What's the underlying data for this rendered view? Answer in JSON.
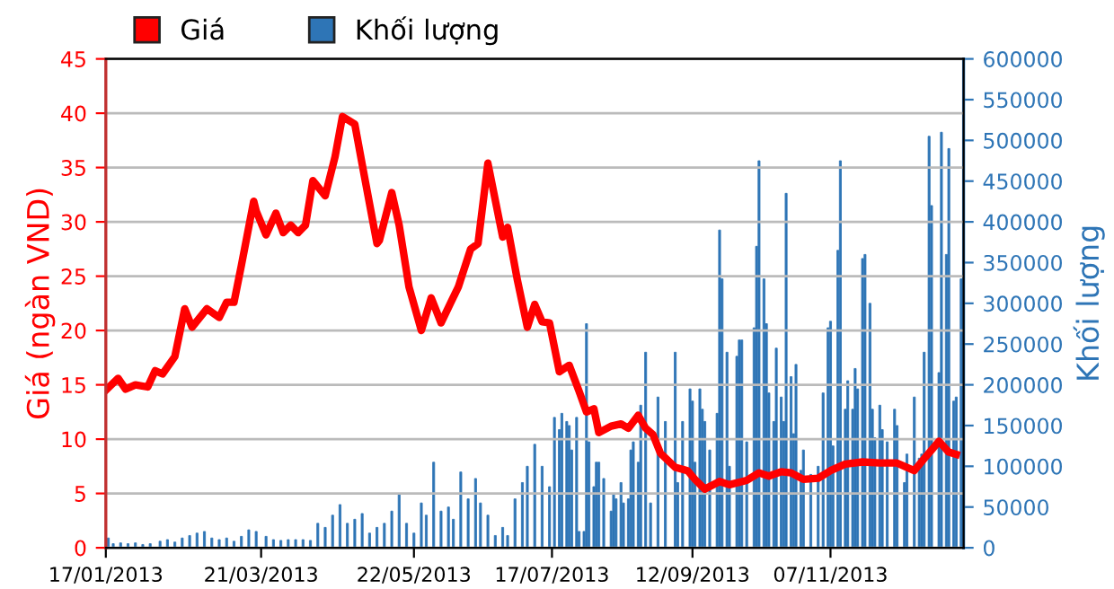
{
  "chart_data": {
    "type": "line",
    "ylabel": "Giá (ngàn VND)",
    "y2label": "Khối lượng",
    "xlim": [
      "2013-01-17",
      "2013-12-31"
    ],
    "xticks": [
      {
        "value": "2013-01-17",
        "label": "17/01/2013"
      },
      {
        "value": "2013-03-21",
        "label": "21/03/2013"
      },
      {
        "value": "2013-05-22",
        "label": "22/05/2013"
      },
      {
        "value": "2013-07-17",
        "label": "17/07/2013"
      },
      {
        "value": "2013-09-12",
        "label": "12/09/2013"
      },
      {
        "value": "2013-11-07",
        "label": "07/11/2013"
      }
    ],
    "ylim": [
      0,
      45
    ],
    "yticks": [
      0,
      5,
      10,
      15,
      20,
      25,
      30,
      35,
      40,
      45
    ],
    "y2lim": [
      0,
      600000
    ],
    "y2ticks": [
      0,
      50000,
      100000,
      150000,
      200000,
      250000,
      300000,
      350000,
      400000,
      450000,
      500000,
      550000,
      600000
    ],
    "grid": "y",
    "legend": "top left",
    "marker": "none",
    "line_style": "solid",
    "series": [
      {
        "name": "Giá",
        "color": "#ff0000",
        "x": [
          "2013-01-17",
          "2013-01-22",
          "2013-01-25",
          "2013-01-29",
          "2013-02-03",
          "2013-02-06",
          "2013-02-09",
          "2013-02-14",
          "2013-02-18",
          "2013-02-21",
          "2013-02-27",
          "2013-03-04",
          "2013-03-07",
          "2013-03-10",
          "2013-03-13",
          "2013-03-18",
          "2013-03-19",
          "2013-03-23",
          "2013-03-27",
          "2013-03-30",
          "2013-04-02",
          "2013-04-05",
          "2013-04-08",
          "2013-04-11",
          "2013-04-16",
          "2013-04-20",
          "2013-04-23",
          "2013-04-28",
          "2013-05-01",
          "2013-05-07",
          "2013-05-08",
          "2013-05-13",
          "2013-05-16",
          "2013-05-20",
          "2013-05-25",
          "2013-05-29",
          "2013-06-02",
          "2013-06-06",
          "2013-06-09",
          "2013-06-11",
          "2013-06-14",
          "2013-06-17",
          "2013-06-21",
          "2013-06-27",
          "2013-06-29",
          "2013-07-03",
          "2013-07-07",
          "2013-07-10",
          "2013-07-13",
          "2013-07-16",
          "2013-07-20",
          "2013-07-24",
          "2013-07-28",
          "2013-07-31",
          "2013-08-03",
          "2013-08-05",
          "2013-08-10",
          "2013-08-14",
          "2013-08-17",
          "2013-08-21",
          "2013-08-24",
          "2013-08-27",
          "2013-08-30",
          "2013-09-05",
          "2013-09-10",
          "2013-09-13",
          "2013-09-17",
          "2013-09-23",
          "2013-09-27",
          "2013-10-04",
          "2013-10-09",
          "2013-10-13",
          "2013-10-18",
          "2013-10-22",
          "2013-10-27",
          "2013-11-02",
          "2013-11-07",
          "2013-11-13",
          "2013-11-20",
          "2013-11-27",
          "2013-12-04",
          "2013-12-11",
          "2013-12-15",
          "2013-12-21",
          "2013-12-25",
          "2013-12-28"
        ],
        "values": [
          14.5,
          15.6,
          14.6,
          15,
          14.8,
          16.3,
          16,
          17.6,
          22,
          20.3,
          22,
          21.2,
          22.6,
          22.6,
          26,
          31.9,
          31,
          28.8,
          30.8,
          29,
          29.7,
          29,
          29.7,
          33.8,
          32.4,
          36,
          39.7,
          39,
          35.3,
          28,
          28.3,
          32.7,
          29.7,
          24,
          20,
          23,
          20.7,
          22.6,
          24,
          25.4,
          27.5,
          28,
          35.4,
          28.6,
          29.5,
          24.6,
          20.3,
          22.4,
          20.8,
          20.7,
          16.2,
          16.8,
          14.4,
          12.5,
          12.8,
          10.6,
          11.2,
          11.4,
          11,
          12.2,
          11,
          10.4,
          8.7,
          7.4,
          7.1,
          6.3,
          5.4,
          6.1,
          5.8,
          6.2,
          6.9,
          6.6,
          7,
          6.9,
          6.3,
          6.4,
          7.1,
          7.7,
          7.9,
          7.8,
          7.8,
          7.1,
          8.2,
          9.8,
          8.8,
          8.6
        ]
      },
      {
        "name": "Khối lượng",
        "type": "bar",
        "axis": "y2",
        "color": "#2e75b6",
        "x": [
          "2013-01-18",
          "2013-01-20",
          "2013-01-23",
          "2013-01-26",
          "2013-01-29",
          "2013-02-01",
          "2013-02-04",
          "2013-02-08",
          "2013-02-11",
          "2013-02-14",
          "2013-02-17",
          "2013-02-20",
          "2013-02-23",
          "2013-02-26",
          "2013-03-01",
          "2013-03-04",
          "2013-03-07",
          "2013-03-10",
          "2013-03-13",
          "2013-03-16",
          "2013-03-19",
          "2013-03-23",
          "2013-03-26",
          "2013-03-29",
          "2013-04-01",
          "2013-04-04",
          "2013-04-07",
          "2013-04-10",
          "2013-04-13",
          "2013-04-16",
          "2013-04-19",
          "2013-04-22",
          "2013-04-25",
          "2013-04-28",
          "2013-05-01",
          "2013-05-04",
          "2013-05-07",
          "2013-05-10",
          "2013-05-13",
          "2013-05-16",
          "2013-05-19",
          "2013-05-22",
          "2013-05-25",
          "2013-05-27",
          "2013-05-30",
          "2013-06-02",
          "2013-06-05",
          "2013-06-07",
          "2013-06-10",
          "2013-06-13",
          "2013-06-16",
          "2013-06-18",
          "2013-06-21",
          "2013-06-24",
          "2013-06-27",
          "2013-06-29",
          "2013-07-02",
          "2013-07-05",
          "2013-07-07",
          "2013-07-10",
          "2013-07-13",
          "2013-07-16",
          "2013-07-18",
          "2013-07-20",
          "2013-07-21",
          "2013-07-23",
          "2013-07-24",
          "2013-07-25",
          "2013-07-27",
          "2013-07-28",
          "2013-07-30",
          "2013-07-31",
          "2013-08-01",
          "2013-08-03",
          "2013-08-04",
          "2013-08-05",
          "2013-08-07",
          "2013-08-10",
          "2013-08-11",
          "2013-08-12",
          "2013-08-14",
          "2013-08-15",
          "2013-08-17",
          "2013-08-18",
          "2013-08-19",
          "2013-08-21",
          "2013-08-22",
          "2013-08-24",
          "2013-08-26",
          "2013-08-29",
          "2013-09-01",
          "2013-09-05",
          "2013-09-06",
          "2013-09-08",
          "2013-09-11",
          "2013-09-12",
          "2013-09-13",
          "2013-09-15",
          "2013-09-16",
          "2013-09-17",
          "2013-09-19",
          "2013-09-22",
          "2013-09-23",
          "2013-09-24",
          "2013-09-26",
          "2013-09-27",
          "2013-09-30",
          "2013-10-01",
          "2013-10-02",
          "2013-10-04",
          "2013-10-07",
          "2013-10-08",
          "2013-10-09",
          "2013-10-11",
          "2013-10-12",
          "2013-10-13",
          "2013-10-15",
          "2013-10-16",
          "2013-10-18",
          "2013-10-19",
          "2013-10-20",
          "2013-10-22",
          "2013-10-23",
          "2013-10-24",
          "2013-10-26",
          "2013-10-27",
          "2013-10-30",
          "2013-11-02",
          "2013-11-04",
          "2013-11-06",
          "2013-11-07",
          "2013-11-08",
          "2013-11-10",
          "2013-11-11",
          "2013-11-13",
          "2013-11-14",
          "2013-11-16",
          "2013-11-17",
          "2013-11-18",
          "2013-11-20",
          "2013-11-21",
          "2013-11-23",
          "2013-11-24",
          "2013-11-25",
          "2013-11-27",
          "2013-11-28",
          "2013-11-30",
          "2013-12-03",
          "2013-12-04",
          "2013-12-07",
          "2013-12-08",
          "2013-12-11",
          "2013-12-13",
          "2013-12-14",
          "2013-12-15",
          "2013-12-17",
          "2013-12-18",
          "2013-12-21",
          "2013-12-22",
          "2013-12-24",
          "2013-12-25",
          "2013-12-27",
          "2013-12-28",
          "2013-12-30"
        ],
        "values": [
          12000,
          5000,
          6000,
          5000,
          6000,
          4000,
          5000,
          8000,
          10000,
          7000,
          12000,
          15000,
          18000,
          20000,
          12000,
          10000,
          12000,
          8000,
          14000,
          22000,
          20000,
          14000,
          10000,
          9000,
          10000,
          10000,
          10000,
          9000,
          30000,
          25000,
          40000,
          53000,
          30000,
          35000,
          42000,
          18000,
          25000,
          30000,
          45000,
          65000,
          30000,
          18000,
          55000,
          40000,
          105000,
          45000,
          50000,
          35000,
          93000,
          60000,
          85000,
          55000,
          40000,
          15000,
          25000,
          15000,
          60000,
          80000,
          100000,
          127000,
          100000,
          75000,
          160000,
          145000,
          165000,
          155000,
          150000,
          120000,
          160000,
          20000,
          20000,
          275000,
          130000,
          75000,
          105000,
          105000,
          85000,
          45000,
          65000,
          60000,
          80000,
          55000,
          60000,
          120000,
          130000,
          105000,
          175000,
          240000,
          55000,
          185000,
          155000,
          240000,
          80000,
          155000,
          195000,
          180000,
          105000,
          195000,
          170000,
          155000,
          120000,
          165000,
          390000,
          330000,
          240000,
          100000,
          235000,
          255000,
          255000,
          130000,
          270000,
          370000,
          475000,
          330000,
          275000,
          190000,
          155000,
          245000,
          185000,
          155000,
          435000,
          210000,
          140000,
          225000,
          95000,
          120000,
          90000,
          100000,
          190000,
          270000,
          278000,
          125000,
          365000,
          475000,
          170000,
          205000,
          170000,
          220000,
          195000,
          355000,
          360000,
          300000,
          170000,
          135000,
          175000,
          145000,
          130000,
          170000,
          150000,
          80000,
          115000,
          185000,
          110000,
          115000,
          240000,
          505000,
          420000,
          215000,
          510000,
          360000,
          490000,
          180000,
          185000,
          330000
        ]
      }
    ]
  }
}
